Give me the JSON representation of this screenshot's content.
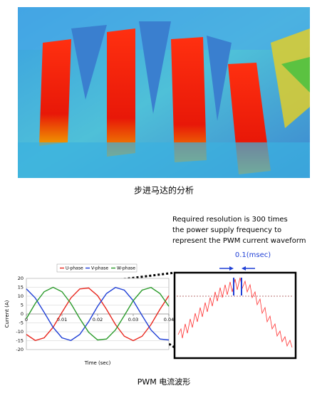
{
  "image_caption": "步进马达的分析",
  "annotation": [
    "Required resolution is 300 times",
    "the power supply frequency to",
    "represent the PWM  current waveform"
  ],
  "resolution_label": "0.1(msec)",
  "chart_caption": "PWM 电流波形",
  "chart_data": {
    "type": "line",
    "x": [
      0,
      0.0025,
      0.005,
      0.0075,
      0.01,
      0.0125,
      0.015,
      0.0175,
      0.02,
      0.0225,
      0.025,
      0.0275,
      0.03,
      0.0325,
      0.035,
      0.0375,
      0.04
    ],
    "series": [
      {
        "name": "U-phase",
        "color": "#e8261d",
        "values": [
          -11.5,
          -14.9,
          -13.4,
          -7.5,
          0.9,
          9.0,
          14.1,
          14.6,
          10.3,
          2.6,
          -5.9,
          -12.5,
          -15,
          -12.5,
          -5.9,
          2.6,
          10.3
        ]
      },
      {
        "name": "V-phase",
        "color": "#1f3fd6",
        "values": [
          14.1,
          9.0,
          0.9,
          -7.5,
          -13.4,
          -14.9,
          -11.5,
          -4.3,
          4.3,
          11.5,
          14.9,
          13.4,
          7.5,
          -0.9,
          -9.0,
          -14.1,
          -14.6
        ]
      },
      {
        "name": "W-phase",
        "color": "#2a9a2a",
        "values": [
          -2.6,
          5.9,
          12.5,
          15,
          12.5,
          5.9,
          -2.6,
          -10.3,
          -14.6,
          -14.1,
          -9.0,
          -0.9,
          7.5,
          13.4,
          14.9,
          11.5,
          4.3
        ]
      }
    ],
    "xlim": [
      0,
      0.04
    ],
    "xticks": [
      0,
      0.01,
      0.02,
      0.03,
      0.04
    ],
    "ylim": [
      -20,
      20
    ],
    "yticks": [
      20,
      15,
      10,
      5,
      0,
      -5,
      -10,
      -15,
      -20
    ],
    "xlabel": "Time (sec)",
    "ylabel": "Current (A)",
    "grid": true,
    "legend": "top"
  }
}
